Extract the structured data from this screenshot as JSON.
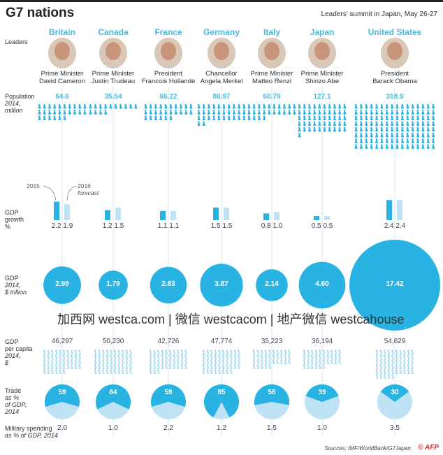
{
  "title": "G7 nations",
  "subtitle": "Leaders' summit in Japan, May 26-27",
  "row_labels": {
    "leaders": "Leaders",
    "population": [
      "Population",
      "2014,",
      "million"
    ],
    "gdp_growth": [
      "GDP",
      "growth",
      "%"
    ],
    "gdp": [
      "GDP",
      "2014,",
      "$ trillion"
    ],
    "gdp_per_capita": [
      "GDP",
      "per capita",
      "2014,",
      "$"
    ],
    "trade": [
      "Trade",
      "as %",
      "of GDP,",
      "2014"
    ],
    "military": [
      "Military spending",
      "as % of GDP,  2014"
    ]
  },
  "legend": {
    "y2015": "2015",
    "y2016": "2016",
    "forecast": "forecast"
  },
  "colors": {
    "accent": "#29b3e3",
    "light": "#bfe3f5",
    "country": "#4ab9dd"
  },
  "chart_data": {
    "type": "infographic",
    "countries": [
      {
        "name": "Britain",
        "role": "Prime Minister",
        "leader": "David Cameron",
        "population": "64.6",
        "growth_2015": "2.2",
        "growth_2016": "1.9",
        "gdp": "2.99",
        "gdp_per_capita": "46,297",
        "trade": "59",
        "military": "2.0"
      },
      {
        "name": "Canada",
        "role": "Prime Minister",
        "leader": "Justin Trudeau",
        "population": "35.54",
        "growth_2015": "1.2",
        "growth_2016": "1.5",
        "gdp": "1.79",
        "gdp_per_capita": "50,230",
        "trade": "64",
        "military": "1.0"
      },
      {
        "name": "France",
        "role": "President",
        "leader": "Francois Hollande",
        "population": "66.22",
        "growth_2015": "1.1",
        "growth_2016": "1.1",
        "gdp": "2.83",
        "gdp_per_capita": "42,726",
        "trade": "59",
        "military": "2.2"
      },
      {
        "name": "Germany",
        "role": "Chancellor",
        "leader": "Angela Merkel",
        "population": "80.97",
        "growth_2015": "1.5",
        "growth_2016": "1.5",
        "gdp": "3.87",
        "gdp_per_capita": "47,774",
        "trade": "85",
        "military": "1.2"
      },
      {
        "name": "Italy",
        "role": "Prime Minister",
        "leader": "Matteo Renzi",
        "population": "60.79",
        "growth_2015": "0.8",
        "growth_2016": "1.0",
        "gdp": "2.14",
        "gdp_per_capita": "35,223",
        "trade": "56",
        "military": "1.5"
      },
      {
        "name": "Japan",
        "role": "Prime Minister",
        "leader": "Shinzo Abe",
        "population": "127.1",
        "growth_2015": "0.5",
        "growth_2016": "0.5",
        "gdp": "4.60",
        "gdp_per_capita": "36,194",
        "trade": "39",
        "military": "1.0"
      },
      {
        "name": "United States",
        "role": "President",
        "leader": "Barack Obama",
        "population": "318.9",
        "growth_2015": "2.4",
        "growth_2016": "2.4",
        "gdp": "17.42",
        "gdp_per_capita": "54,629",
        "trade": "30",
        "military": "3.5"
      }
    ]
  },
  "watermark": "加西网 westca.com | 微信 westcacom | 地产微信 westcahouse",
  "sources": "Sources: IMF/WorldBank/G7Japan",
  "credit": "© AFP"
}
